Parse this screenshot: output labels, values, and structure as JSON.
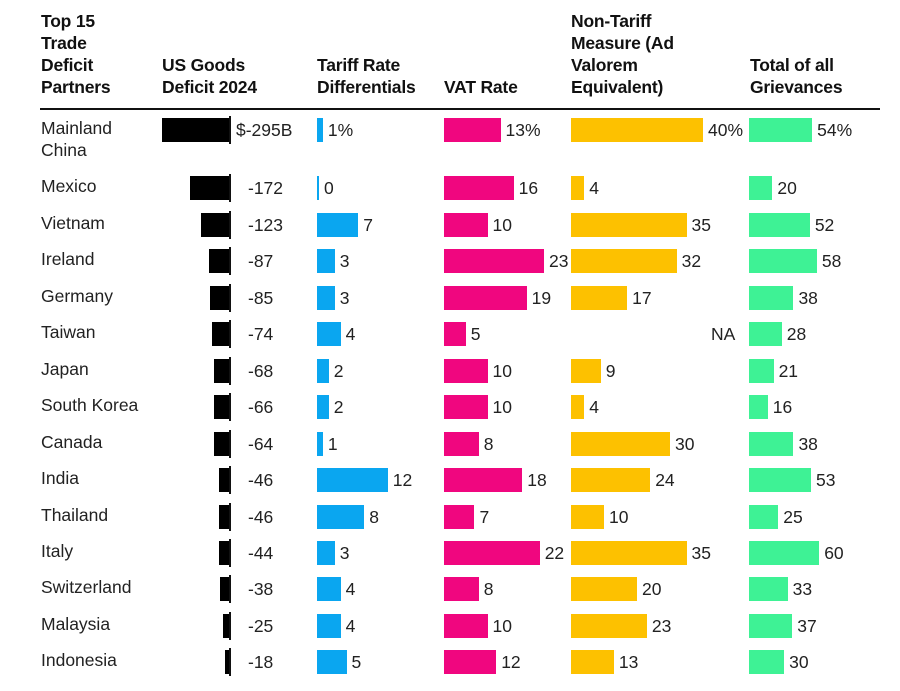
{
  "chart_data": {
    "type": "table",
    "title": "Top 15 Trade Deficit Partners",
    "columns": [
      {
        "key": "country",
        "label": "Top 15 Trade Deficit Partners"
      },
      {
        "key": "deficit",
        "label": "US Goods Deficit 2024",
        "unit": "$B",
        "color": "#000000"
      },
      {
        "key": "tariff",
        "label": "Tariff Rate Differentials",
        "unit": "%",
        "color": "#0aa6f0"
      },
      {
        "key": "vat",
        "label": "VAT Rate",
        "unit": "%",
        "color": "#f0067f"
      },
      {
        "key": "ntm",
        "label": "Non-Tariff Measure (Ad Valorem Equivalent)",
        "unit": "%",
        "color": "#fdc100"
      },
      {
        "key": "total",
        "label": "Total of all Grievances",
        "unit": "%",
        "color": "#3ef295"
      }
    ],
    "header_lines": {
      "country": [
        "Top 15",
        "Trade",
        "Deficit",
        "Partners"
      ],
      "deficit": [
        "US Goods",
        "Deficit 2024"
      ],
      "tariff": [
        "Tariff Rate",
        "Differentials"
      ],
      "vat": [
        "VAT Rate"
      ],
      "ntm": [
        "Non-Tariff",
        "Measure (Ad",
        "Valorem",
        "Equivalent)"
      ],
      "total": [
        "Total of all",
        "Grievances"
      ]
    },
    "rows": [
      {
        "country": "Mainland China",
        "country_lines": [
          "Mainland",
          "China"
        ],
        "deficit": -295,
        "deficit_label": "$-295B",
        "tariff": 1,
        "tariff_label": "1%",
        "vat": 13,
        "vat_label": "13%",
        "ntm": 40,
        "ntm_label": "40%",
        "total": 54,
        "total_label": "54%"
      },
      {
        "country": "Mexico",
        "country_lines": [
          "Mexico"
        ],
        "deficit": -172,
        "deficit_label": "-172",
        "tariff": 0,
        "tariff_label": "0",
        "vat": 16,
        "vat_label": "16",
        "ntm": 4,
        "ntm_label": "4",
        "total": 20,
        "total_label": "20"
      },
      {
        "country": "Vietnam",
        "country_lines": [
          "Vietnam"
        ],
        "deficit": -123,
        "deficit_label": "-123",
        "tariff": 7,
        "tariff_label": "7",
        "vat": 10,
        "vat_label": "10",
        "ntm": 35,
        "ntm_label": "35",
        "total": 52,
        "total_label": "52"
      },
      {
        "country": "Ireland",
        "country_lines": [
          "Ireland"
        ],
        "deficit": -87,
        "deficit_label": "-87",
        "tariff": 3,
        "tariff_label": "3",
        "vat": 23,
        "vat_label": "23",
        "ntm": 32,
        "ntm_label": "32",
        "total": 58,
        "total_label": "58"
      },
      {
        "country": "Germany",
        "country_lines": [
          "Germany"
        ],
        "deficit": -85,
        "deficit_label": "-85",
        "tariff": 3,
        "tariff_label": "3",
        "vat": 19,
        "vat_label": "19",
        "ntm": 17,
        "ntm_label": "17",
        "total": 38,
        "total_label": "38"
      },
      {
        "country": "Taiwan",
        "country_lines": [
          "Taiwan"
        ],
        "deficit": -74,
        "deficit_label": "-74",
        "tariff": 4,
        "tariff_label": "4",
        "vat": 5,
        "vat_label": "5",
        "ntm": null,
        "ntm_label": "NA",
        "total": 28,
        "total_label": "28"
      },
      {
        "country": "Japan",
        "country_lines": [
          "Japan"
        ],
        "deficit": -68,
        "deficit_label": "-68",
        "tariff": 2,
        "tariff_label": "2",
        "vat": 10,
        "vat_label": "10",
        "ntm": 9,
        "ntm_label": "9",
        "total": 21,
        "total_label": "21"
      },
      {
        "country": "South Korea",
        "country_lines": [
          "South Korea"
        ],
        "deficit": -66,
        "deficit_label": "-66",
        "tariff": 2,
        "tariff_label": "2",
        "vat": 10,
        "vat_label": "10",
        "ntm": 4,
        "ntm_label": "4",
        "total": 16,
        "total_label": "16"
      },
      {
        "country": "Canada",
        "country_lines": [
          "Canada"
        ],
        "deficit": -64,
        "deficit_label": "-64",
        "tariff": 1,
        "tariff_label": "1",
        "vat": 8,
        "vat_label": "8",
        "ntm": 30,
        "ntm_label": "30",
        "total": 38,
        "total_label": "38"
      },
      {
        "country": "India",
        "country_lines": [
          "India"
        ],
        "deficit": -46,
        "deficit_label": "-46",
        "tariff": 12,
        "tariff_label": "12",
        "vat": 18,
        "vat_label": "18",
        "ntm": 24,
        "ntm_label": "24",
        "total": 53,
        "total_label": "53"
      },
      {
        "country": "Thailand",
        "country_lines": [
          "Thailand"
        ],
        "deficit": -46,
        "deficit_label": "-46",
        "tariff": 8,
        "tariff_label": "8",
        "vat": 7,
        "vat_label": "7",
        "ntm": 10,
        "ntm_label": "10",
        "total": 25,
        "total_label": "25"
      },
      {
        "country": "Italy",
        "country_lines": [
          "Italy"
        ],
        "deficit": -44,
        "deficit_label": "-44",
        "tariff": 3,
        "tariff_label": "3",
        "vat": 22,
        "vat_label": "22",
        "ntm": 35,
        "ntm_label": "35",
        "total": 60,
        "total_label": "60"
      },
      {
        "country": "Switzerland",
        "country_lines": [
          "Switzerland"
        ],
        "deficit": -38,
        "deficit_label": "-38",
        "tariff": 4,
        "tariff_label": "4",
        "vat": 8,
        "vat_label": "8",
        "ntm": 20,
        "ntm_label": "20",
        "total": 33,
        "total_label": "33"
      },
      {
        "country": "Malaysia",
        "country_lines": [
          "Malaysia"
        ],
        "deficit": -25,
        "deficit_label": "-25",
        "tariff": 4,
        "tariff_label": "4",
        "vat": 10,
        "vat_label": "10",
        "ntm": 23,
        "ntm_label": "23",
        "total": 37,
        "total_label": "37"
      },
      {
        "country": "Indonesia",
        "country_lines": [
          "Indonesia"
        ],
        "deficit": -18,
        "deficit_label": "-18",
        "tariff": 5,
        "tariff_label": "5",
        "vat": 12,
        "vat_label": "12",
        "ntm": 13,
        "ntm_label": "13",
        "total": 30,
        "total_label": "30"
      }
    ]
  }
}
